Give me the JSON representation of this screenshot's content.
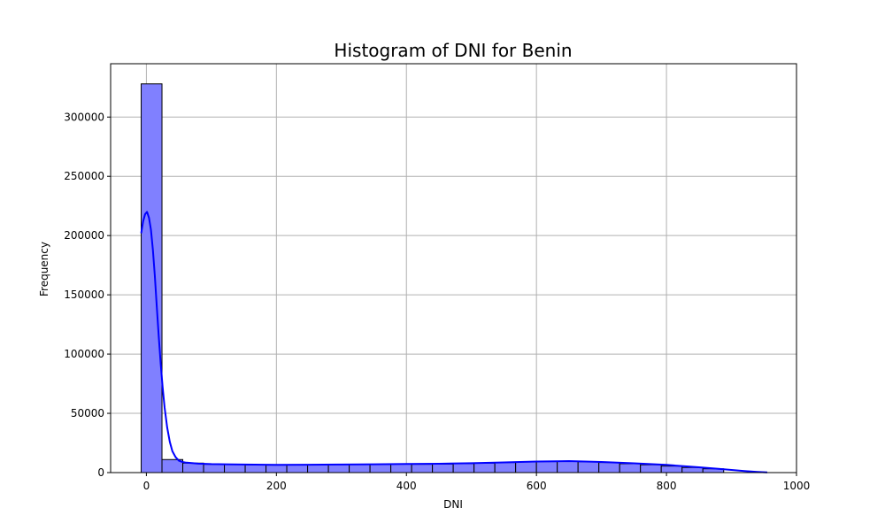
{
  "chart_data": {
    "type": "bar",
    "title": "Histogram of DNI for Benin",
    "xlabel": "DNI",
    "ylabel": "Frequency",
    "xlim": [
      -55,
      1000
    ],
    "ylim": [
      0,
      345000
    ],
    "xticks": [
      0,
      200,
      400,
      600,
      800,
      1000
    ],
    "yticks": [
      0,
      50000,
      100000,
      150000,
      200000,
      250000,
      300000
    ],
    "grid": true,
    "bar_color": "#8080ff",
    "bar_edge_color": "#000000",
    "kde_color": "#0000ff",
    "bins": [
      {
        "x0": -8,
        "x1": 24,
        "count": 328000
      },
      {
        "x0": 24,
        "x1": 56,
        "count": 11000
      },
      {
        "x0": 56,
        "x1": 88,
        "count": 8000
      },
      {
        "x0": 88,
        "x1": 120,
        "count": 7000
      },
      {
        "x0": 120,
        "x1": 152,
        "count": 6800
      },
      {
        "x0": 152,
        "x1": 184,
        "count": 6500
      },
      {
        "x0": 184,
        "x1": 216,
        "count": 6300
      },
      {
        "x0": 216,
        "x1": 248,
        "count": 6500
      },
      {
        "x0": 248,
        "x1": 280,
        "count": 6600
      },
      {
        "x0": 280,
        "x1": 312,
        "count": 6700
      },
      {
        "x0": 312,
        "x1": 344,
        "count": 6800
      },
      {
        "x0": 344,
        "x1": 376,
        "count": 7000
      },
      {
        "x0": 376,
        "x1": 408,
        "count": 7200
      },
      {
        "x0": 408,
        "x1": 440,
        "count": 7000
      },
      {
        "x0": 440,
        "x1": 472,
        "count": 7200
      },
      {
        "x0": 472,
        "x1": 504,
        "count": 7600
      },
      {
        "x0": 504,
        "x1": 536,
        "count": 8000
      },
      {
        "x0": 536,
        "x1": 568,
        "count": 8500
      },
      {
        "x0": 568,
        "x1": 600,
        "count": 9000
      },
      {
        "x0": 600,
        "x1": 632,
        "count": 9300
      },
      {
        "x0": 632,
        "x1": 664,
        "count": 9700
      },
      {
        "x0": 664,
        "x1": 696,
        "count": 9200
      },
      {
        "x0": 696,
        "x1": 728,
        "count": 8500
      },
      {
        "x0": 728,
        "x1": 760,
        "count": 7500
      },
      {
        "x0": 760,
        "x1": 792,
        "count": 6600
      },
      {
        "x0": 792,
        "x1": 824,
        "count": 5500
      },
      {
        "x0": 824,
        "x1": 856,
        "count": 4300
      },
      {
        "x0": 856,
        "x1": 888,
        "count": 3200
      }
    ],
    "kde": {
      "x": [
        -8,
        -5,
        -2,
        1,
        4,
        7,
        10,
        13,
        16,
        19,
        22,
        25,
        28,
        32,
        36,
        40,
        45,
        50,
        55,
        60,
        70,
        80,
        100,
        150,
        200,
        250,
        300,
        350,
        400,
        450,
        500,
        550,
        600,
        650,
        700,
        750,
        800,
        850,
        880,
        900,
        920,
        940,
        955
      ],
      "y": [
        202000,
        212000,
        218000,
        220000,
        215000,
        205000,
        188000,
        166000,
        140000,
        115000,
        92000,
        72000,
        55000,
        38000,
        26000,
        18000,
        13000,
        10000,
        9000,
        8500,
        8000,
        7600,
        7200,
        6800,
        6500,
        6600,
        6800,
        7000,
        7300,
        7500,
        7900,
        8600,
        9300,
        9700,
        9000,
        7800,
        6500,
        4500,
        3200,
        2200,
        1300,
        600,
        200
      ]
    }
  }
}
